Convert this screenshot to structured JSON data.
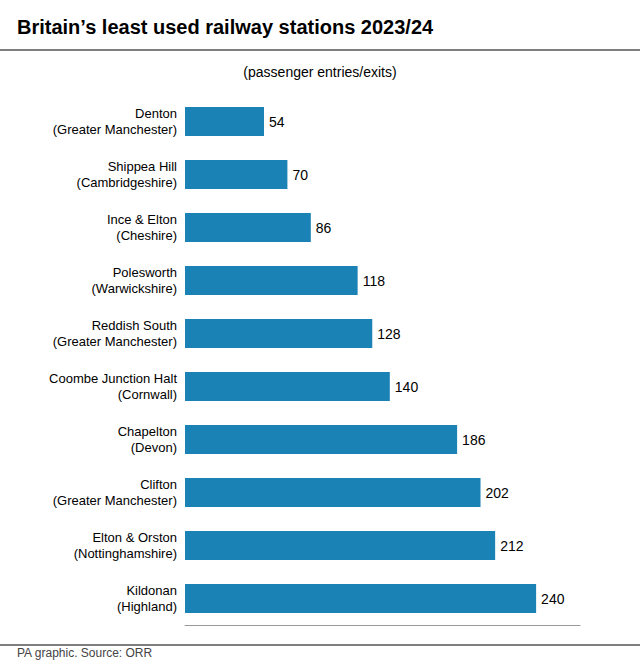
{
  "chart_data": {
    "type": "bar",
    "orientation": "horizontal",
    "title": "Britain’s least used railway stations 2023/24",
    "subtitle": "(passenger entries/exits)",
    "annotations": [
      "PA graphic. Source: ORR"
    ],
    "categories": [
      "Denton\n(Greater Manchester)",
      "Shippea Hill\n(Cambridgeshire)",
      "Ince & Elton\n(Cheshire)",
      "Polesworth\n(Warwickshire)",
      "Reddish South\n(Greater Manchester)",
      "Coombe Junction Halt\n(Cornwall)",
      "Chapelton\n(Devon)",
      "Clifton\n(Greater Manchester)",
      "Elton & Orston\n(Nottinghamshire)",
      "Kildonan\n(Highland)"
    ],
    "values": [
      54,
      70,
      86,
      118,
      128,
      140,
      186,
      202,
      212,
      240
    ],
    "color": "#1a82b5",
    "xlim": [
      0,
      270
    ],
    "grid": false,
    "data_labels": true,
    "tick_labels": "y"
  }
}
